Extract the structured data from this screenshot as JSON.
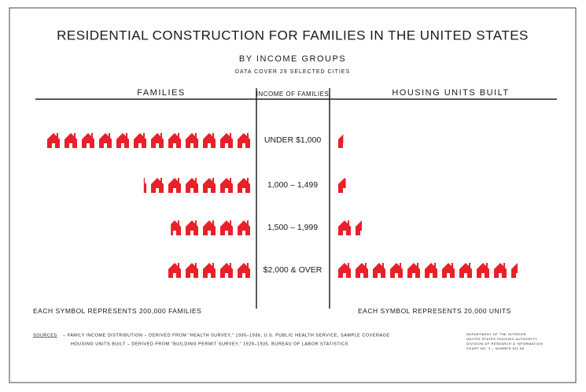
{
  "chart_data": {
    "type": "pictogram",
    "title": "RESIDENTIAL CONSTRUCTION FOR FAMILIES IN THE UNITED STATES",
    "subtitle": "BY INCOME GROUPS",
    "note": "DATA COVER 29 SELECTED CITIES",
    "category_header": "INCOME OF FAMILIES",
    "categories": [
      "UNDER $1,000",
      "1,000 – 1,499",
      "1,500 – 1,999",
      "$2,000 & OVER"
    ],
    "series": [
      {
        "name": "FAMILIES",
        "color": "#e8202a",
        "side": "left",
        "values": [
          2400000,
          1240000,
          960000,
          1000000
        ],
        "scale_prefix": "EACH SYMBOL REPRESENTS",
        "per_symbol": {
          "value": 200000,
          "label": "200,000"
        },
        "scale_suffix": "FAMILIES"
      },
      {
        "name": "HOUSING UNITS BUILT",
        "color": "#e8202a",
        "side": "right",
        "values": [
          8000,
          12000,
          30000,
          210000
        ],
        "scale_prefix": "EACH SYMBOL REPRESENTS",
        "per_symbol": {
          "value": 20000,
          "label": "20,000"
        },
        "scale_suffix": "UNITS"
      }
    ],
    "sources_label": "SOURCES",
    "sources": [
      "– FAMILY INCOME DISTRIBUTION – DERIVED FROM \"HEALTH SURVEY,\" 1935–1936, U.S. PUBLIC HEALTH SERVICE, SAMPLE COVERAGE",
      "HOUSING UNITS BUILT – DERIVED FROM \"BUILDING PERMIT SURVEY,\" 1929–1935, BUREAU OF LABOR STATISTICS"
    ],
    "credit": [
      "DEPARTMENT OF THE INTERIOR",
      "UNITED STATES HOUSING AUTHORITY",
      "DIVISION OF RESEARCH & INFORMATION",
      "CHART NO. 3 – NUMBER 811.56"
    ]
  }
}
